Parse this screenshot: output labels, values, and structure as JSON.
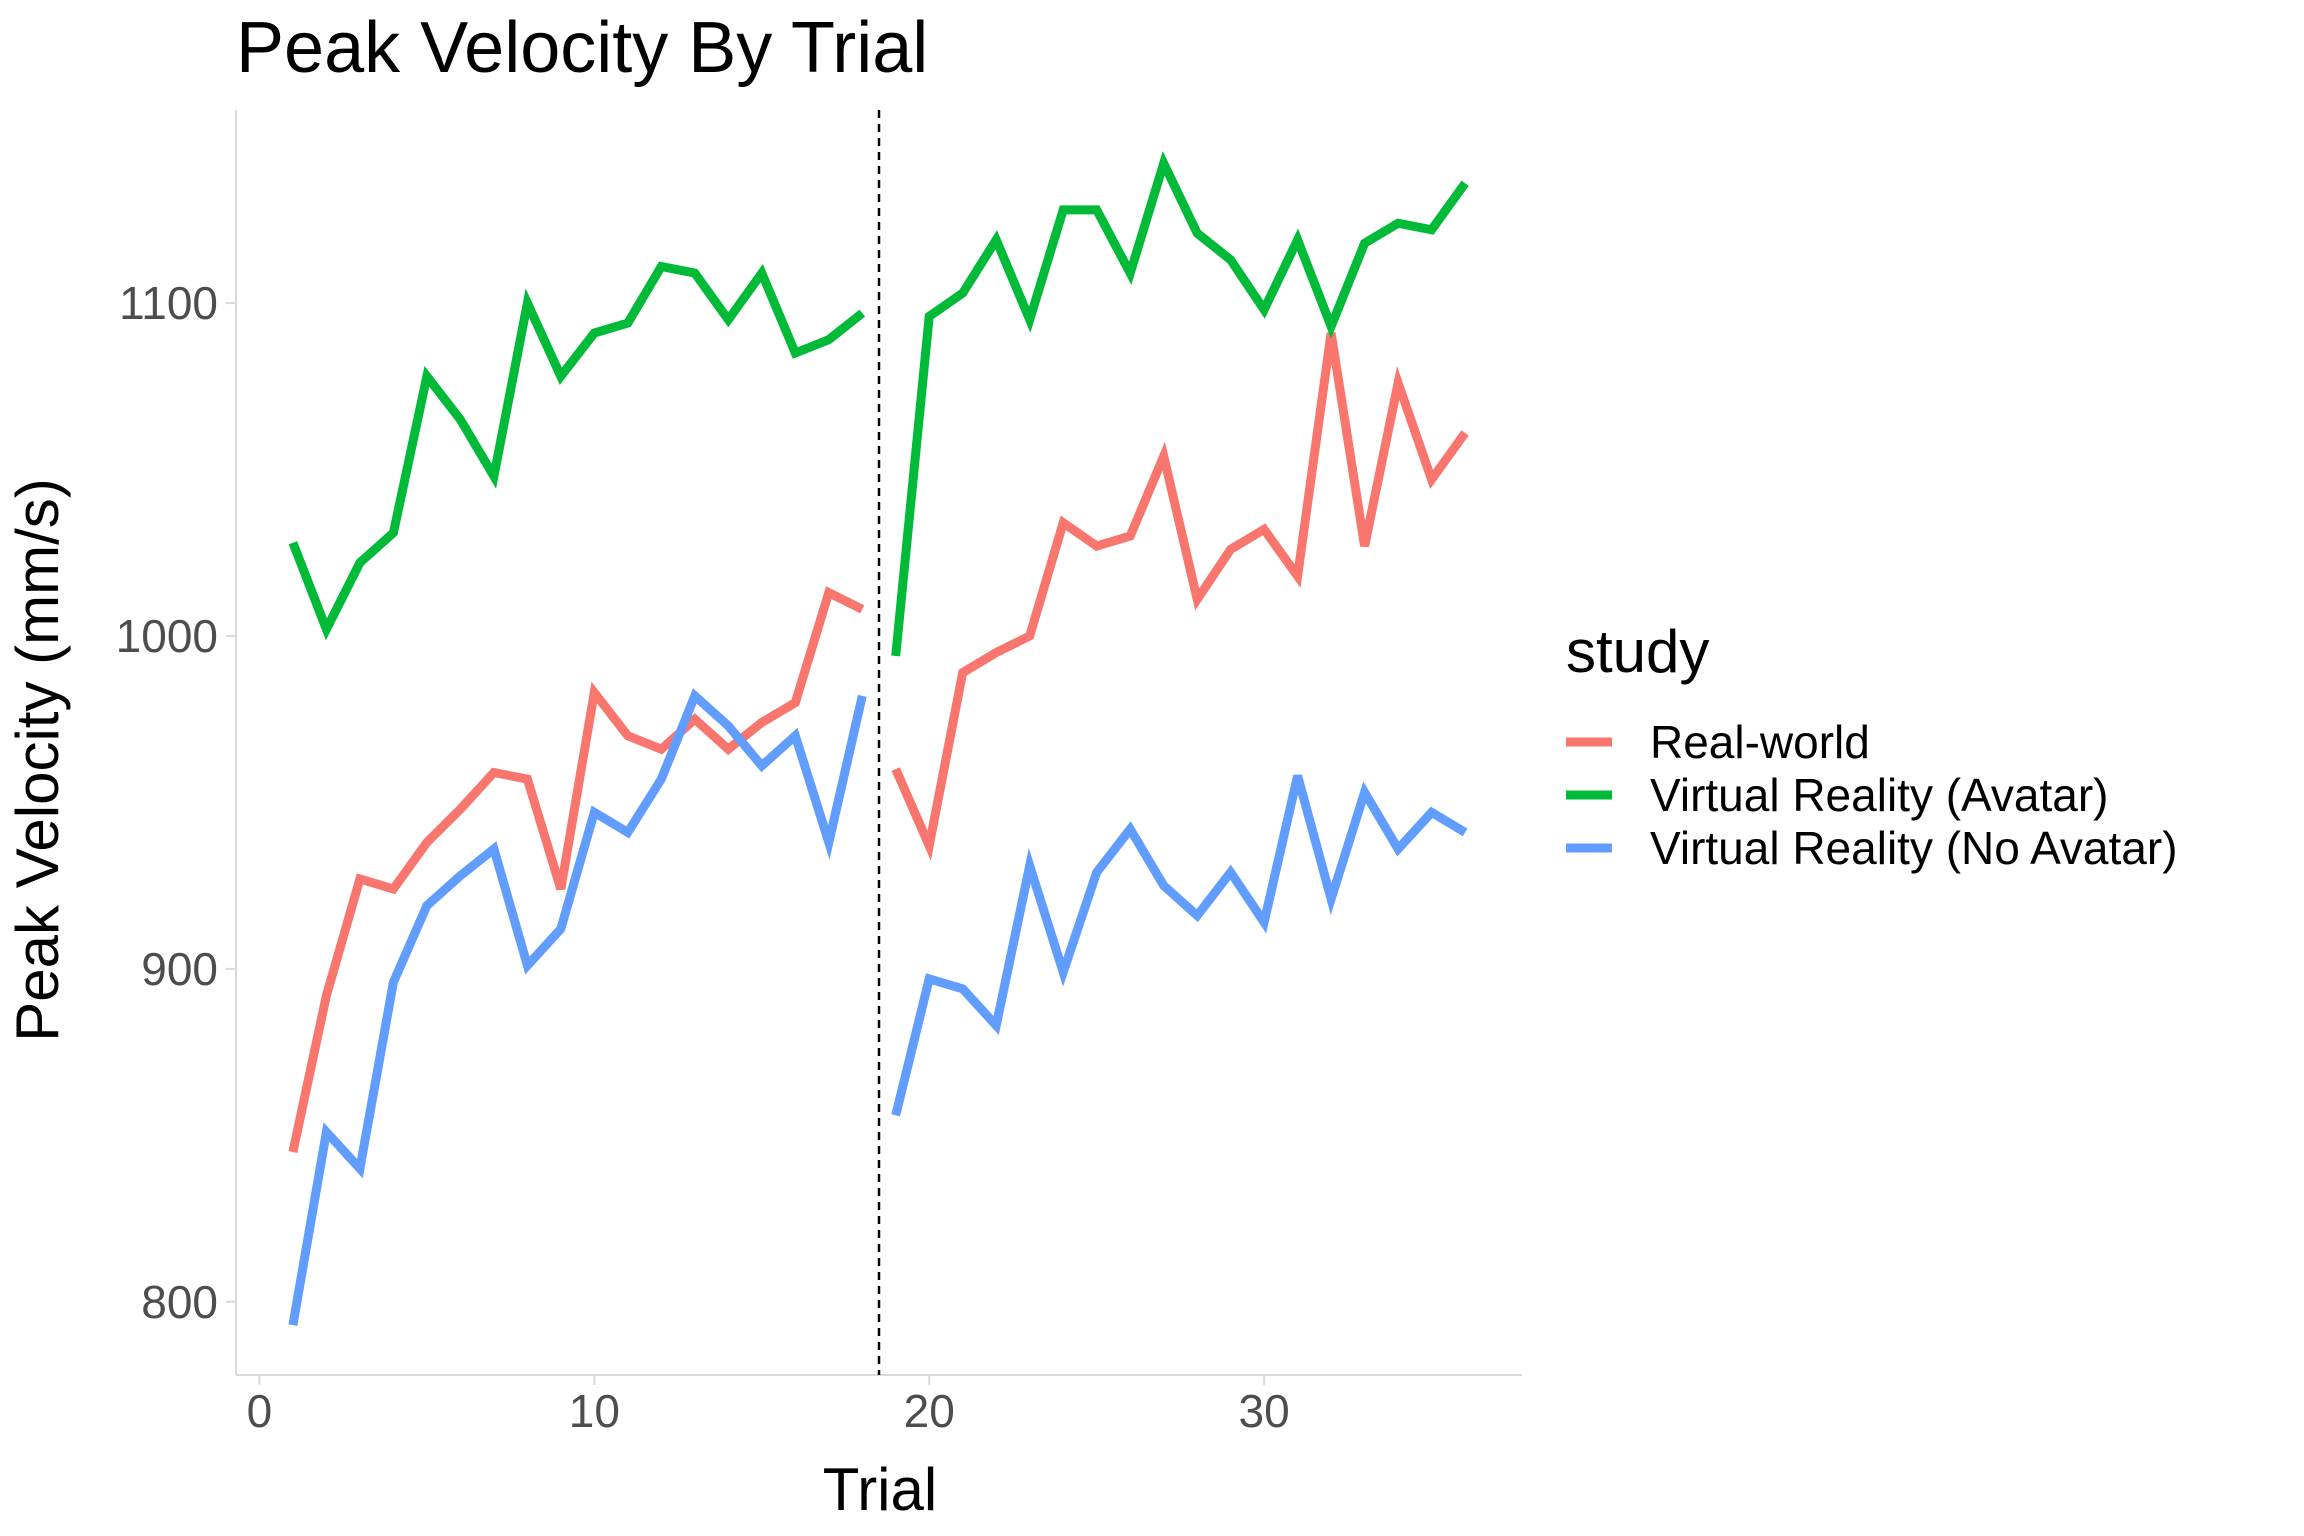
{
  "chart_data": {
    "type": "line",
    "title": "Peak Velocity By Trial",
    "xlabel": "Trial",
    "ylabel": "Peak Velocity (mm/s)",
    "xlim": [
      -0.7,
      37.7
    ],
    "ylim": [
      778,
      1158
    ],
    "xticks": [
      0,
      10,
      20,
      30
    ],
    "yticks": [
      800,
      900,
      1000,
      1100
    ],
    "grid": false,
    "vline": {
      "x": 18.5,
      "style": "dashed"
    },
    "legend": {
      "title": "study",
      "position": "right"
    },
    "series": [
      {
        "name": "Real-world",
        "color": "#F8766D",
        "segments": [
          {
            "x": [
              1,
              2,
              3,
              4,
              5,
              6,
              7,
              8,
              9,
              10,
              11,
              12,
              13,
              14,
              15,
              16,
              17,
              18
            ],
            "y": [
              845,
              892,
              927,
              924,
              938,
              948,
              959,
              957,
              924,
              983,
              970,
              966,
              975,
              966,
              974,
              980,
              1013,
              1008
            ]
          },
          {
            "x": [
              19,
              20,
              21,
              22,
              23,
              24,
              25,
              26,
              27,
              28,
              29,
              30,
              31,
              32,
              33,
              34,
              35,
              36
            ],
            "y": [
              960,
              937,
              989,
              995,
              1000,
              1034,
              1027,
              1030,
              1054,
              1011,
              1026,
              1032,
              1018,
              1091,
              1027,
              1076,
              1047,
              1061
            ]
          }
        ]
      },
      {
        "name": "Virtual Reality (Avatar)",
        "color": "#00BA38",
        "segments": [
          {
            "x": [
              1,
              2,
              3,
              4,
              5,
              6,
              7,
              8,
              9,
              10,
              11,
              12,
              13,
              14,
              15,
              16,
              17,
              18
            ],
            "y": [
              1028,
              1002,
              1022,
              1031,
              1078,
              1065,
              1048,
              1100,
              1078,
              1091,
              1094,
              1111,
              1109,
              1095,
              1109,
              1085,
              1089,
              1097
            ]
          },
          {
            "x": [
              19,
              20,
              21,
              22,
              23,
              24,
              25,
              26,
              27,
              28,
              29,
              30,
              31,
              32,
              33,
              34,
              35,
              36
            ],
            "y": [
              994,
              1096,
              1103,
              1119,
              1095,
              1128,
              1128,
              1109,
              1142,
              1121,
              1113,
              1098,
              1119,
              1093,
              1118,
              1124,
              1122,
              1136
            ]
          }
        ]
      },
      {
        "name": "Virtual Reality (No Avatar)",
        "color": "#619CFF",
        "segments": [
          {
            "x": [
              1,
              2,
              3,
              4,
              5,
              6,
              7,
              8,
              9,
              10,
              11,
              12,
              13,
              14,
              15,
              16,
              17,
              18
            ],
            "y": [
              793,
              851,
              840,
              896,
              919,
              928,
              936,
              901,
              912,
              947,
              941,
              957,
              982,
              973,
              961,
              970,
              938,
              982
            ]
          },
          {
            "x": [
              19,
              20,
              21,
              22,
              23,
              24,
              25,
              26,
              27,
              28,
              29,
              30,
              31,
              32,
              33,
              34,
              35,
              36
            ],
            "y": [
              856,
              897,
              894,
              883,
              931,
              899,
              929,
              942,
              925,
              916,
              929,
              914,
              958,
              921,
              953,
              936,
              947,
              941
            ]
          }
        ]
      }
    ]
  }
}
